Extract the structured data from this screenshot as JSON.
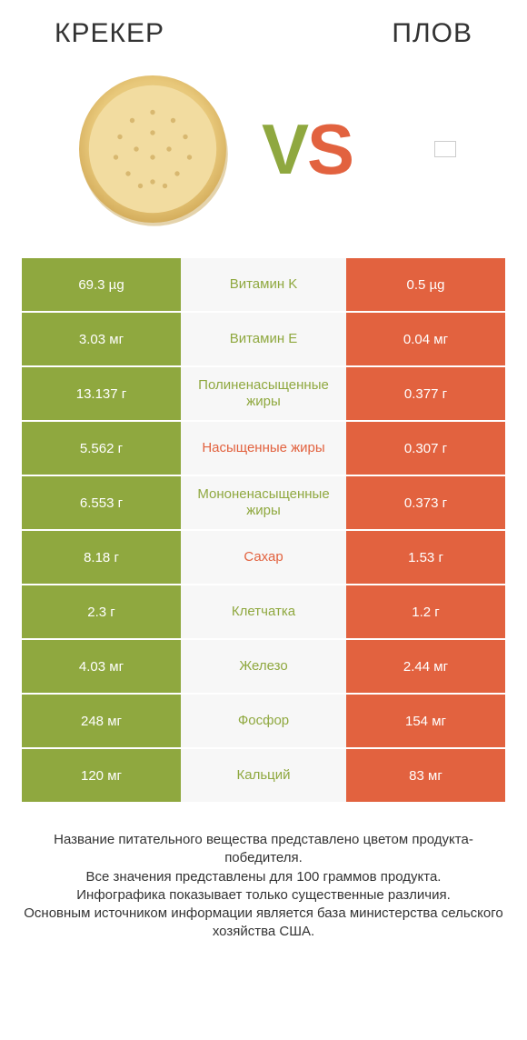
{
  "colors": {
    "green": "#8fa83f",
    "orange": "#e2623f",
    "mid_bg": "#f7f7f7",
    "text": "#333333"
  },
  "header": {
    "left": "КРЕКЕР",
    "right": "ПЛОВ"
  },
  "vs": {
    "v": "V",
    "s": "S"
  },
  "rows": [
    {
      "left": "69.3 µg",
      "mid": "Витамин K",
      "right": "0.5 µg",
      "winner": "left"
    },
    {
      "left": "3.03 мг",
      "mid": "Витамин E",
      "right": "0.04 мг",
      "winner": "left"
    },
    {
      "left": "13.137 г",
      "mid": "Полиненасыщенные жиры",
      "right": "0.377 г",
      "winner": "left"
    },
    {
      "left": "5.562 г",
      "mid": "Насыщенные жиры",
      "right": "0.307 г",
      "winner": "right"
    },
    {
      "left": "6.553 г",
      "mid": "Мононенасыщенные жиры",
      "right": "0.373 г",
      "winner": "left"
    },
    {
      "left": "8.18 г",
      "mid": "Сахар",
      "right": "1.53 г",
      "winner": "right"
    },
    {
      "left": "2.3 г",
      "mid": "Клетчатка",
      "right": "1.2 г",
      "winner": "left"
    },
    {
      "left": "4.03 мг",
      "mid": "Железо",
      "right": "2.44 мг",
      "winner": "left"
    },
    {
      "left": "248 мг",
      "mid": "Фосфор",
      "right": "154 мг",
      "winner": "left"
    },
    {
      "left": "120 мг",
      "mid": "Кальций",
      "right": "83 мг",
      "winner": "left"
    }
  ],
  "footer": {
    "line1": "Название питательного вещества представлено цветом продукта-победителя.",
    "line2": "Все значения представлены для 100 граммов продукта.",
    "line3": "Инфографика показывает только существенные различия.",
    "line4": "Основным источником информации является база министерства сельского хозяйства США."
  },
  "cracker_svg": {
    "fill_outer": "#e8c87a",
    "fill_inner": "#f2dca0",
    "shadow": "#c9a85a",
    "dot": "#d8b870"
  }
}
